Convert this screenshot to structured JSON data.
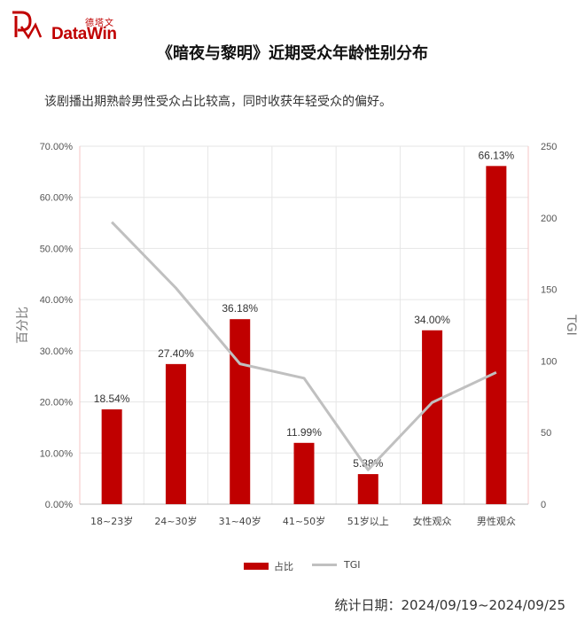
{
  "header": {
    "logo_cn": "德塔文",
    "logo_en": "DataWin"
  },
  "title": "《暗夜与黎明》近期受众年龄性别分布",
  "subtitle": "该剧播出期熟龄男性受众占比较高，同时收获年轻受众的偏好。",
  "footer": "统计日期：2024/09/19~2024/09/25",
  "colors": {
    "bar": "#c00000",
    "line": "#c0c0c0",
    "brand": "#c00000"
  },
  "chart_data": {
    "type": "bar",
    "categories": [
      "18~23岁",
      "24~30岁",
      "31~40岁",
      "41~50岁",
      "51岁以上",
      "女性观众",
      "男性观众"
    ],
    "series": [
      {
        "name": "占比",
        "type": "bar",
        "axis": "left",
        "values": [
          18.54,
          27.4,
          36.18,
          11.99,
          5.88,
          34.0,
          66.13
        ],
        "labels": [
          "18.54%",
          "27.40%",
          "36.18%",
          "11.99%",
          "5.88%",
          "34.00%",
          "66.13%"
        ]
      },
      {
        "name": "TGI",
        "type": "line",
        "axis": "right",
        "values": [
          197,
          151,
          98,
          88,
          24,
          71,
          92
        ]
      }
    ],
    "ylabel": "百分比",
    "y2label": "TGI",
    "ylim": [
      0,
      70
    ],
    "y2lim": [
      0,
      250
    ],
    "yticks": [
      "0.00%",
      "10.00%",
      "20.00%",
      "30.00%",
      "40.00%",
      "50.00%",
      "60.00%",
      "70.00%"
    ],
    "y2ticks": [
      "0",
      "50",
      "100",
      "150",
      "200",
      "250"
    ],
    "grid": true,
    "legend": "bottom"
  }
}
